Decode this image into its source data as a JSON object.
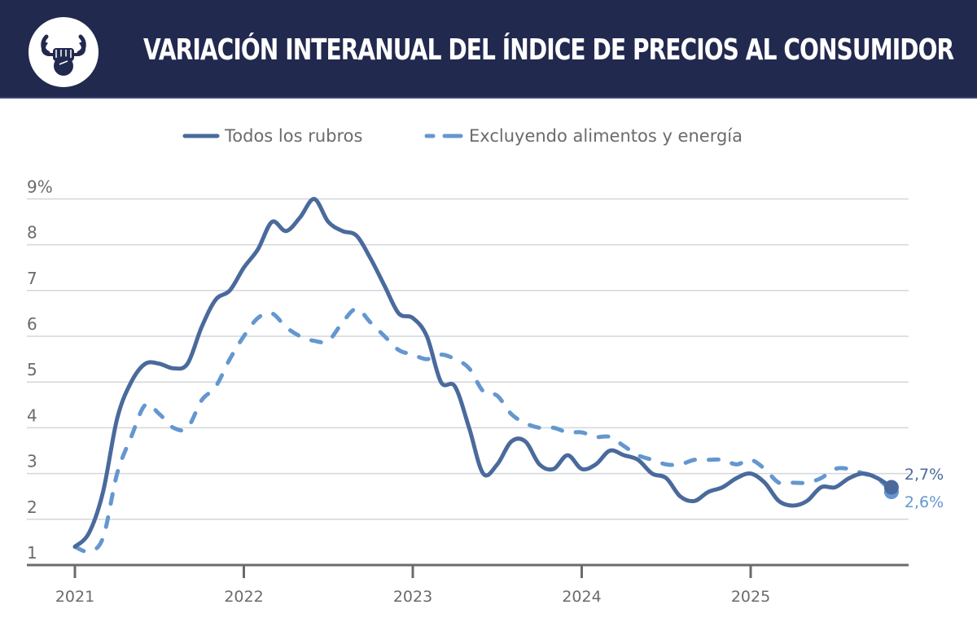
{
  "header": {
    "title": "VARIACIÓN INTERANUAL DEL ÍNDICE DE PRECIOS AL CONSUMIDOR",
    "logo_icon": "bull-fist-icon"
  },
  "colors": {
    "header_bg": "#22294f",
    "series_all": "#4a6a9c",
    "series_core": "#6497cf",
    "grid": "#d3d6dc",
    "axis": "#6b6b6e"
  },
  "chart_data": {
    "type": "line",
    "title": "VARIACIÓN INTERANUAL DEL ÍNDICE DE PRECIOS AL CONSUMIDOR",
    "xlabel": "",
    "ylabel": "",
    "y_unit": "%",
    "ylim": [
      1,
      9
    ],
    "yticks": [
      1,
      2,
      3,
      4,
      5,
      6,
      7,
      8,
      9
    ],
    "ytick_labels": [
      "1",
      "2",
      "3",
      "4",
      "5",
      "6",
      "7",
      "8",
      "9%"
    ],
    "xlim": [
      "2021-01",
      "2025-11"
    ],
    "xticks": [
      "2021",
      "2022",
      "2023",
      "2024",
      "2025"
    ],
    "grid": true,
    "legend_position": "top-center",
    "x": [
      "2021-01",
      "2021-02",
      "2021-03",
      "2021-04",
      "2021-05",
      "2021-06",
      "2021-07",
      "2021-08",
      "2021-09",
      "2021-10",
      "2021-11",
      "2021-12",
      "2022-01",
      "2022-02",
      "2022-03",
      "2022-04",
      "2022-05",
      "2022-06",
      "2022-07",
      "2022-08",
      "2022-09",
      "2022-10",
      "2022-11",
      "2022-12",
      "2023-01",
      "2023-02",
      "2023-03",
      "2023-04",
      "2023-05",
      "2023-06",
      "2023-07",
      "2023-08",
      "2023-09",
      "2023-10",
      "2023-11",
      "2023-12",
      "2024-01",
      "2024-02",
      "2024-03",
      "2024-04",
      "2024-05",
      "2024-06",
      "2024-07",
      "2024-08",
      "2024-09",
      "2024-10",
      "2024-11",
      "2024-12",
      "2025-01",
      "2025-02",
      "2025-03",
      "2025-04",
      "2025-05",
      "2025-06",
      "2025-07",
      "2025-08",
      "2025-09",
      "2025-10",
      "2025-11"
    ],
    "series": [
      {
        "name": "Todos los rubros",
        "style": "solid",
        "color": "#4a6a9c",
        "values": [
          1.4,
          1.7,
          2.6,
          4.2,
          5.0,
          5.4,
          5.4,
          5.3,
          5.4,
          6.2,
          6.8,
          7.0,
          7.5,
          7.9,
          8.5,
          8.3,
          8.6,
          9.0,
          8.5,
          8.3,
          8.2,
          7.7,
          7.1,
          6.5,
          6.4,
          6.0,
          5.0,
          4.9,
          4.0,
          3.0,
          3.2,
          3.7,
          3.7,
          3.2,
          3.1,
          3.4,
          3.1,
          3.2,
          3.5,
          3.4,
          3.3,
          3.0,
          2.9,
          2.5,
          2.4,
          2.6,
          2.7,
          2.9,
          3.0,
          2.8,
          2.4,
          2.3,
          2.4,
          2.7,
          2.7,
          2.9,
          3.0,
          2.9,
          2.7
        ],
        "end_label": "2,7%"
      },
      {
        "name": "Excluyendo alimentos y energía",
        "style": "dashed",
        "color": "#6497cf",
        "values": [
          1.4,
          1.3,
          1.6,
          3.0,
          3.8,
          4.5,
          4.3,
          4.0,
          4.0,
          4.6,
          4.9,
          5.5,
          6.0,
          6.4,
          6.5,
          6.2,
          6.0,
          5.9,
          5.9,
          6.3,
          6.6,
          6.3,
          6.0,
          5.7,
          5.6,
          5.5,
          5.6,
          5.5,
          5.3,
          4.8,
          4.7,
          4.3,
          4.1,
          4.0,
          4.0,
          3.9,
          3.9,
          3.8,
          3.8,
          3.6,
          3.4,
          3.3,
          3.2,
          3.2,
          3.3,
          3.3,
          3.3,
          3.2,
          3.3,
          3.1,
          2.8,
          2.8,
          2.8,
          2.9,
          3.1,
          3.1,
          3.0,
          2.9,
          2.6
        ],
        "end_label": "2,6%"
      }
    ]
  }
}
